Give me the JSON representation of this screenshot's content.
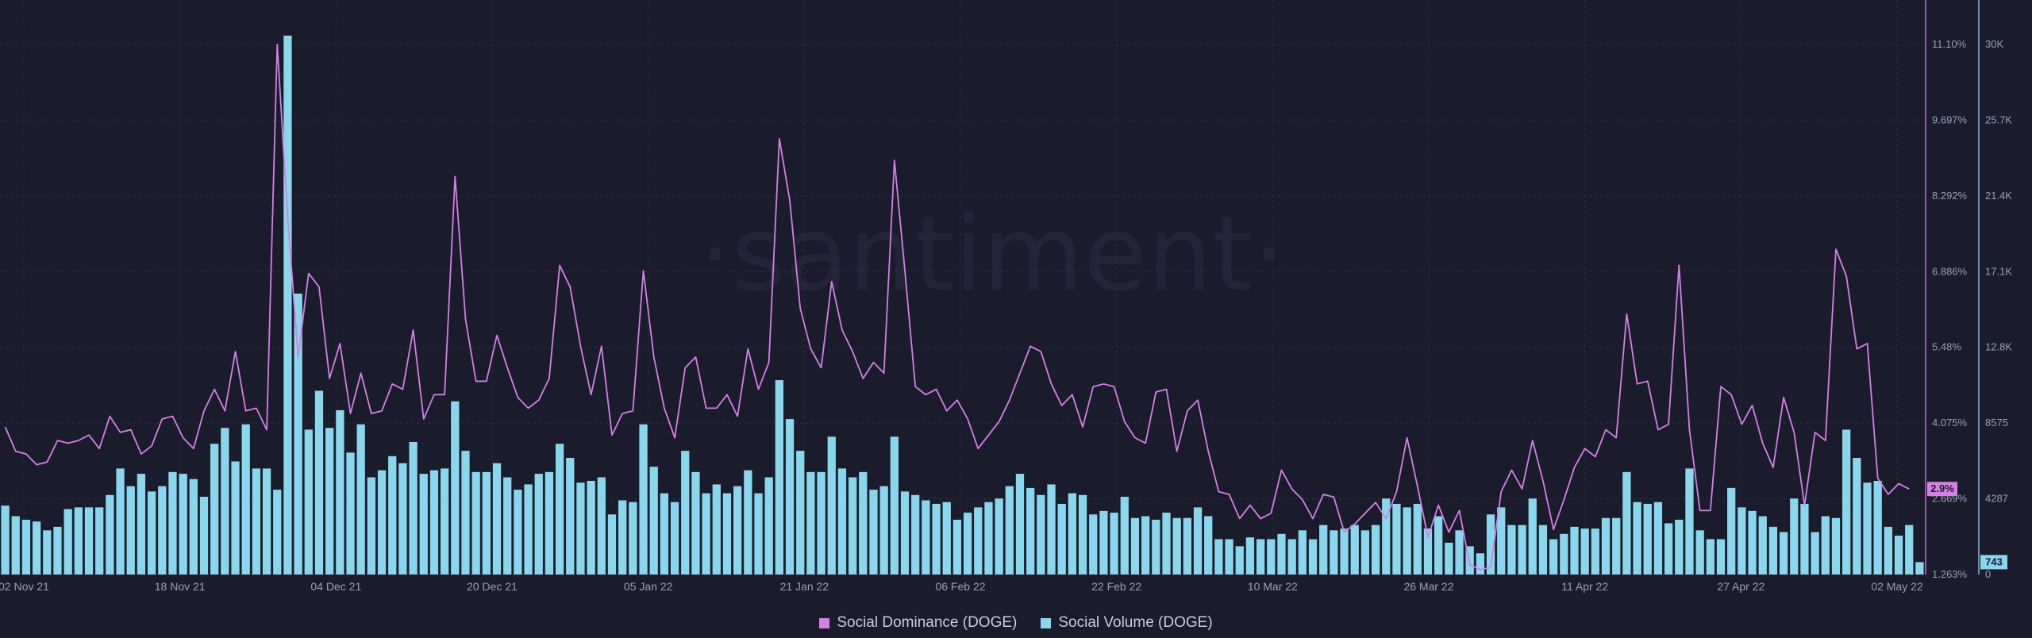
{
  "watermark": "·santiment·",
  "legend": [
    {
      "label": "Social Dominance (DOGE)",
      "color": "#d67fe8"
    },
    {
      "label": "Social Volume (DOGE)",
      "color": "#8ad6ec"
    }
  ],
  "colors": {
    "background": "#1b1c2b",
    "grid": "#2e3045",
    "dominance_line": "#d67fe8",
    "volume_bar": "#8ad6ec"
  },
  "chart_data": {
    "type": "bar",
    "title": "",
    "x_start": "2021-11-02",
    "x_end": "2022-05-02",
    "x_tick_labels": [
      "02 Nov 21",
      "18 Nov 21",
      "04 Dec 21",
      "20 Dec 21",
      "05 Jan 22",
      "21 Jan 22",
      "06 Feb 22",
      "22 Feb 22",
      "10 Mar 22",
      "26 Mar 22",
      "11 Apr 22",
      "27 Apr 22",
      "02 May 22"
    ],
    "y_left_ticks": [
      "11.10%",
      "9.697%",
      "8.292%",
      "6.886%",
      "5.48%",
      "4.075%",
      "2.669%",
      "1.263%"
    ],
    "y_right_ticks": [
      "30K",
      "25.7K",
      "21.4K",
      "17.1K",
      "12.8K",
      "8575",
      "4287",
      "0"
    ],
    "y_left_range": [
      1.263,
      11.1
    ],
    "y_right_range": [
      0,
      30000
    ],
    "grid": true,
    "legend_position": "bottom-center",
    "last_values": {
      "dominance": "2.9%",
      "volume": "743"
    },
    "series": [
      {
        "name": "Social Dominance (DOGE)",
        "type": "line",
        "axis": "left",
        "values": [
          4.0,
          3.55,
          3.5,
          3.3,
          3.35,
          3.75,
          3.7,
          3.75,
          3.85,
          3.6,
          4.2,
          3.9,
          3.95,
          3.5,
          3.65,
          4.15,
          4.2,
          3.8,
          3.6,
          4.3,
          4.7,
          4.3,
          5.4,
          4.3,
          4.35,
          3.95,
          11.1,
          7.9,
          5.3,
          6.85,
          6.6,
          4.9,
          5.55,
          4.25,
          5.0,
          4.25,
          4.3,
          4.8,
          4.7,
          5.8,
          4.15,
          4.6,
          4.6,
          8.65,
          6.0,
          4.85,
          4.85,
          5.7,
          5.1,
          4.55,
          4.35,
          4.5,
          4.9,
          7.0,
          6.6,
          5.5,
          4.6,
          5.5,
          3.85,
          4.25,
          4.3,
          6.9,
          5.3,
          4.35,
          3.8,
          5.1,
          5.3,
          4.35,
          4.35,
          4.6,
          4.2,
          5.45,
          4.7,
          5.2,
          9.35,
          8.2,
          6.2,
          5.45,
          5.1,
          6.7,
          5.8,
          5.4,
          4.9,
          5.2,
          5.0,
          8.95,
          6.9,
          4.75,
          4.6,
          4.7,
          4.3,
          4.5,
          4.15,
          3.6,
          3.85,
          4.1,
          4.5,
          5.0,
          5.5,
          5.4,
          4.8,
          4.4,
          4.6,
          4.0,
          4.75,
          4.8,
          4.75,
          4.1,
          3.8,
          3.7,
          4.65,
          4.7,
          3.55,
          4.3,
          4.5,
          3.55,
          2.8,
          2.75,
          2.3,
          2.55,
          2.3,
          2.4,
          3.2,
          2.85,
          2.65,
          2.3,
          2.75,
          2.7,
          2.05,
          2.2,
          2.4,
          2.6,
          2.3,
          2.8,
          3.8,
          2.9,
          1.95,
          2.55,
          2.05,
          2.45,
          1.45,
          1.35,
          1.4,
          2.8,
          3.2,
          2.85,
          3.75,
          3.0,
          2.1,
          2.65,
          3.25,
          3.6,
          3.45,
          3.95,
          3.8,
          6.1,
          4.8,
          4.85,
          3.95,
          4.05,
          7.0,
          3.95,
          2.45,
          2.45,
          4.75,
          4.6,
          4.05,
          4.4,
          3.7,
          3.25,
          4.55,
          3.9,
          2.55,
          3.9,
          3.75,
          7.3,
          6.8,
          5.45,
          5.55,
          3.05,
          2.75,
          2.95,
          2.85
        ]
      },
      {
        "name": "Social Volume (DOGE)",
        "type": "bar",
        "axis": "right",
        "values": [
          3900,
          3300,
          3100,
          3000,
          2500,
          2700,
          3700,
          3800,
          3800,
          3800,
          4500,
          6000,
          5000,
          5700,
          4700,
          5000,
          5800,
          5700,
          5400,
          4400,
          7400,
          8300,
          6400,
          8500,
          6000,
          6000,
          4800,
          30500,
          15900,
          8200,
          10400,
          8300,
          9300,
          6900,
          8500,
          5500,
          5900,
          6700,
          6300,
          7500,
          5700,
          5900,
          6000,
          9800,
          7000,
          5800,
          5800,
          6300,
          5500,
          4800,
          5100,
          5700,
          5800,
          7400,
          6600,
          5200,
          5300,
          5500,
          3400,
          4200,
          4100,
          8500,
          6100,
          4600,
          4100,
          7000,
          5800,
          4600,
          5100,
          4600,
          5000,
          5900,
          4600,
          5500,
          11000,
          8800,
          7000,
          5800,
          5800,
          7800,
          6000,
          5500,
          5800,
          4800,
          5000,
          7800,
          4700,
          4500,
          4200,
          4000,
          4100,
          3100,
          3500,
          3800,
          4100,
          4300,
          5000,
          5700,
          4900,
          4500,
          5100,
          4000,
          4600,
          4500,
          3400,
          3600,
          3500,
          4400,
          3200,
          3300,
          3100,
          3500,
          3200,
          3200,
          3800,
          3300,
          2000,
          2000,
          1600,
          2100,
          2000,
          2000,
          2300,
          2000,
          2500,
          2000,
          2800,
          2500,
          2600,
          2800,
          2500,
          2800,
          4300,
          4000,
          3800,
          4000,
          2600,
          3300,
          1800,
          2500,
          1600,
          1200,
          3400,
          3800,
          2800,
          2800,
          4300,
          2800,
          2000,
          2300,
          2700,
          2600,
          2600,
          3200,
          3200,
          5800,
          4100,
          4000,
          4100,
          2900,
          3100,
          6000,
          2500,
          2000,
          2000,
          4900,
          3800,
          3600,
          3300,
          2700,
          2400,
          4300,
          4000,
          2400,
          3300,
          3200,
          8200,
          6600,
          5200,
          5300,
          2700,
          2200,
          2800,
          700
        ]
      }
    ]
  }
}
